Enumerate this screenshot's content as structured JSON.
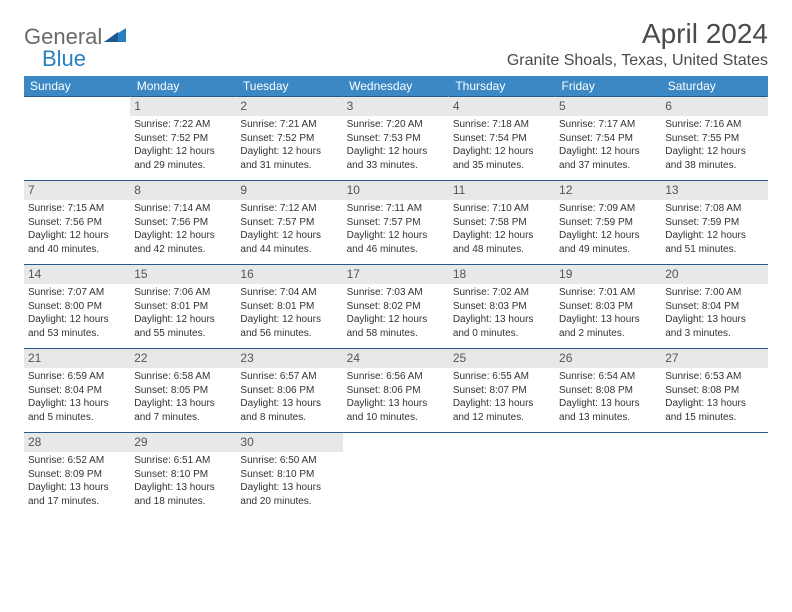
{
  "logo": {
    "general": "General",
    "blue": "Blue"
  },
  "title": "April 2024",
  "location": "Granite Shoals, Texas, United States",
  "colors": {
    "header_bg": "#3b88c4",
    "header_text": "#ffffff",
    "border": "#2a5a8a",
    "daynum_bg": "#e8e8e8",
    "text": "#333333",
    "title_text": "#4a4a4a",
    "logo_general": "#6b6b6b",
    "logo_blue": "#2a7fbf"
  },
  "day_headers": [
    "Sunday",
    "Monday",
    "Tuesday",
    "Wednesday",
    "Thursday",
    "Friday",
    "Saturday"
  ],
  "weeks": [
    [
      {
        "n": "",
        "sr": "",
        "ss": "",
        "dl": ""
      },
      {
        "n": "1",
        "sr": "Sunrise: 7:22 AM",
        "ss": "Sunset: 7:52 PM",
        "dl": "Daylight: 12 hours and 29 minutes."
      },
      {
        "n": "2",
        "sr": "Sunrise: 7:21 AM",
        "ss": "Sunset: 7:52 PM",
        "dl": "Daylight: 12 hours and 31 minutes."
      },
      {
        "n": "3",
        "sr": "Sunrise: 7:20 AM",
        "ss": "Sunset: 7:53 PM",
        "dl": "Daylight: 12 hours and 33 minutes."
      },
      {
        "n": "4",
        "sr": "Sunrise: 7:18 AM",
        "ss": "Sunset: 7:54 PM",
        "dl": "Daylight: 12 hours and 35 minutes."
      },
      {
        "n": "5",
        "sr": "Sunrise: 7:17 AM",
        "ss": "Sunset: 7:54 PM",
        "dl": "Daylight: 12 hours and 37 minutes."
      },
      {
        "n": "6",
        "sr": "Sunrise: 7:16 AM",
        "ss": "Sunset: 7:55 PM",
        "dl": "Daylight: 12 hours and 38 minutes."
      }
    ],
    [
      {
        "n": "7",
        "sr": "Sunrise: 7:15 AM",
        "ss": "Sunset: 7:56 PM",
        "dl": "Daylight: 12 hours and 40 minutes."
      },
      {
        "n": "8",
        "sr": "Sunrise: 7:14 AM",
        "ss": "Sunset: 7:56 PM",
        "dl": "Daylight: 12 hours and 42 minutes."
      },
      {
        "n": "9",
        "sr": "Sunrise: 7:12 AM",
        "ss": "Sunset: 7:57 PM",
        "dl": "Daylight: 12 hours and 44 minutes."
      },
      {
        "n": "10",
        "sr": "Sunrise: 7:11 AM",
        "ss": "Sunset: 7:57 PM",
        "dl": "Daylight: 12 hours and 46 minutes."
      },
      {
        "n": "11",
        "sr": "Sunrise: 7:10 AM",
        "ss": "Sunset: 7:58 PM",
        "dl": "Daylight: 12 hours and 48 minutes."
      },
      {
        "n": "12",
        "sr": "Sunrise: 7:09 AM",
        "ss": "Sunset: 7:59 PM",
        "dl": "Daylight: 12 hours and 49 minutes."
      },
      {
        "n": "13",
        "sr": "Sunrise: 7:08 AM",
        "ss": "Sunset: 7:59 PM",
        "dl": "Daylight: 12 hours and 51 minutes."
      }
    ],
    [
      {
        "n": "14",
        "sr": "Sunrise: 7:07 AM",
        "ss": "Sunset: 8:00 PM",
        "dl": "Daylight: 12 hours and 53 minutes."
      },
      {
        "n": "15",
        "sr": "Sunrise: 7:06 AM",
        "ss": "Sunset: 8:01 PM",
        "dl": "Daylight: 12 hours and 55 minutes."
      },
      {
        "n": "16",
        "sr": "Sunrise: 7:04 AM",
        "ss": "Sunset: 8:01 PM",
        "dl": "Daylight: 12 hours and 56 minutes."
      },
      {
        "n": "17",
        "sr": "Sunrise: 7:03 AM",
        "ss": "Sunset: 8:02 PM",
        "dl": "Daylight: 12 hours and 58 minutes."
      },
      {
        "n": "18",
        "sr": "Sunrise: 7:02 AM",
        "ss": "Sunset: 8:03 PM",
        "dl": "Daylight: 13 hours and 0 minutes."
      },
      {
        "n": "19",
        "sr": "Sunrise: 7:01 AM",
        "ss": "Sunset: 8:03 PM",
        "dl": "Daylight: 13 hours and 2 minutes."
      },
      {
        "n": "20",
        "sr": "Sunrise: 7:00 AM",
        "ss": "Sunset: 8:04 PM",
        "dl": "Daylight: 13 hours and 3 minutes."
      }
    ],
    [
      {
        "n": "21",
        "sr": "Sunrise: 6:59 AM",
        "ss": "Sunset: 8:04 PM",
        "dl": "Daylight: 13 hours and 5 minutes."
      },
      {
        "n": "22",
        "sr": "Sunrise: 6:58 AM",
        "ss": "Sunset: 8:05 PM",
        "dl": "Daylight: 13 hours and 7 minutes."
      },
      {
        "n": "23",
        "sr": "Sunrise: 6:57 AM",
        "ss": "Sunset: 8:06 PM",
        "dl": "Daylight: 13 hours and 8 minutes."
      },
      {
        "n": "24",
        "sr": "Sunrise: 6:56 AM",
        "ss": "Sunset: 8:06 PM",
        "dl": "Daylight: 13 hours and 10 minutes."
      },
      {
        "n": "25",
        "sr": "Sunrise: 6:55 AM",
        "ss": "Sunset: 8:07 PM",
        "dl": "Daylight: 13 hours and 12 minutes."
      },
      {
        "n": "26",
        "sr": "Sunrise: 6:54 AM",
        "ss": "Sunset: 8:08 PM",
        "dl": "Daylight: 13 hours and 13 minutes."
      },
      {
        "n": "27",
        "sr": "Sunrise: 6:53 AM",
        "ss": "Sunset: 8:08 PM",
        "dl": "Daylight: 13 hours and 15 minutes."
      }
    ],
    [
      {
        "n": "28",
        "sr": "Sunrise: 6:52 AM",
        "ss": "Sunset: 8:09 PM",
        "dl": "Daylight: 13 hours and 17 minutes."
      },
      {
        "n": "29",
        "sr": "Sunrise: 6:51 AM",
        "ss": "Sunset: 8:10 PM",
        "dl": "Daylight: 13 hours and 18 minutes."
      },
      {
        "n": "30",
        "sr": "Sunrise: 6:50 AM",
        "ss": "Sunset: 8:10 PM",
        "dl": "Daylight: 13 hours and 20 minutes."
      },
      {
        "n": "",
        "sr": "",
        "ss": "",
        "dl": ""
      },
      {
        "n": "",
        "sr": "",
        "ss": "",
        "dl": ""
      },
      {
        "n": "",
        "sr": "",
        "ss": "",
        "dl": ""
      },
      {
        "n": "",
        "sr": "",
        "ss": "",
        "dl": ""
      }
    ]
  ]
}
